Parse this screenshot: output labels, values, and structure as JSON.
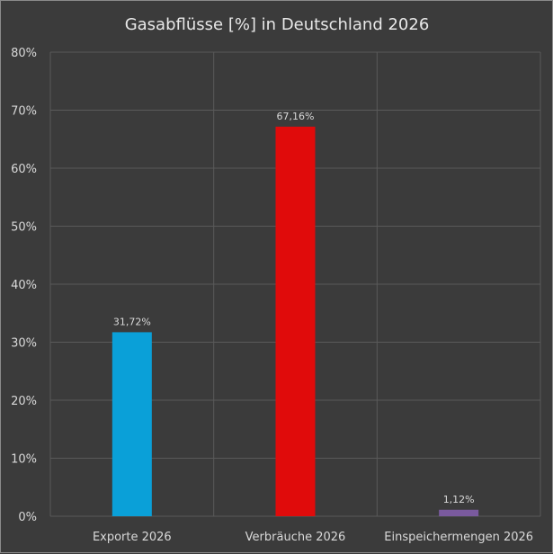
{
  "chart_data": {
    "type": "bar",
    "title": "Gasabflüsse [%] in Deutschland 2026",
    "categories": [
      "Exporte 2026",
      "Verbräuche 2026",
      "Einspeichermengen 2026"
    ],
    "values": [
      31.72,
      67.16,
      1.12
    ],
    "value_labels": [
      "31,72%",
      "67,16%",
      "1,12%"
    ],
    "colors": [
      "#0aa0d8",
      "#e00b0b",
      "#7a5a9e"
    ],
    "yticks": [
      0,
      10,
      20,
      30,
      40,
      50,
      60,
      70,
      80
    ],
    "ytick_labels": [
      "0%",
      "10%",
      "20%",
      "30%",
      "40%",
      "50%",
      "60%",
      "70%",
      "80%"
    ],
    "ylim": [
      0,
      80
    ],
    "grid": true,
    "legend": "none",
    "xlabel": "",
    "ylabel": ""
  }
}
